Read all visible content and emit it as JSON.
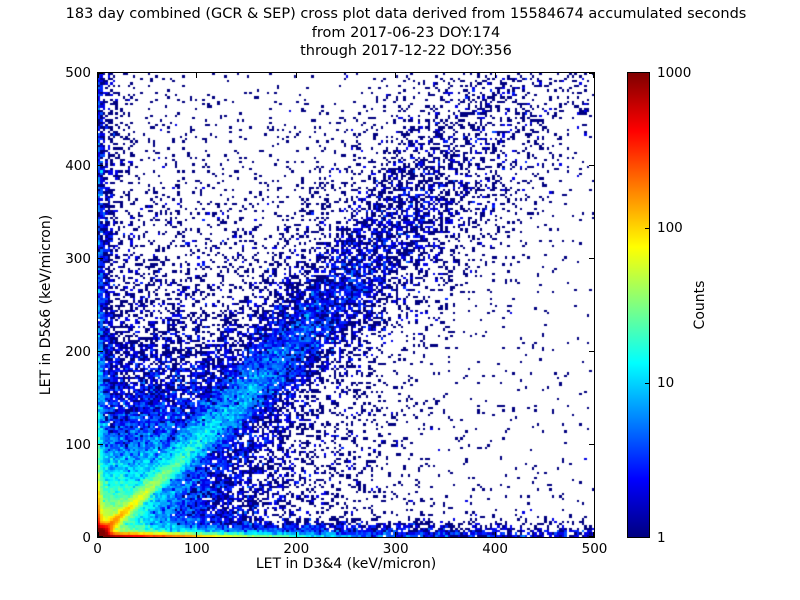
{
  "chart_data": {
    "type": "heatmap",
    "title_lines": [
      "183 day combined (GCR & SEP) cross plot data derived from 15584674 accumulated seconds",
      "from 2017-06-23 DOY:174",
      "through 2017-12-22 DOY:356"
    ],
    "xlabel": "LET in D3&4 (keV/micron)",
    "ylabel": "LET in D5&6 (keV/micron)",
    "xlim": [
      0,
      500
    ],
    "ylim": [
      0,
      500
    ],
    "xticks": [
      0,
      100,
      200,
      300,
      400,
      500
    ],
    "yticks": [
      0,
      100,
      200,
      300,
      400,
      500
    ],
    "grid": false,
    "background_color": "#ffffff",
    "text_color": "#000000",
    "colorbar": {
      "label": "Counts",
      "scale": "log",
      "clim": [
        1,
        1000
      ],
      "ticks": [
        1,
        10,
        100,
        1000
      ],
      "colormap": "jet"
    },
    "bins": [
      200,
      200
    ],
    "seed": 20171222,
    "density_features": [
      {
        "kind": "peak",
        "x": 2,
        "y": 2,
        "sx": 5,
        "sy": 5,
        "amp": 1500
      },
      {
        "kind": "hridge",
        "y": 1.2,
        "sy": 1.4,
        "amp": 900,
        "decay": 45
      },
      {
        "kind": "hridge",
        "y": 2,
        "sy": 4.5,
        "amp": 45,
        "decay": 65
      },
      {
        "kind": "hridge",
        "y": 3,
        "sy": 9,
        "amp": 7,
        "decay": 160
      },
      {
        "kind": "hridge",
        "y": 2,
        "sy": 4.5,
        "amp": 1.3,
        "decay": 100000
      },
      {
        "kind": "vridge",
        "x": 1.2,
        "sx": 1.4,
        "amp": 500,
        "decay": 22
      },
      {
        "kind": "vridge",
        "x": 1.5,
        "sx": 3.5,
        "amp": 25,
        "decay": 90
      },
      {
        "kind": "vridge",
        "x": 2,
        "sx": 10,
        "amp": 3.5,
        "decay": 280
      },
      {
        "kind": "vridge",
        "x": 1.2,
        "sx": 2.2,
        "amp": 1.6,
        "decay": 100000
      },
      {
        "kind": "ray",
        "slope": 1.0,
        "curve": 0,
        "amp": 280,
        "decay": 30,
        "w0": 2.0,
        "wg": 0.02
      },
      {
        "kind": "ray",
        "slope": 0.97,
        "curve": 0.00045,
        "amp": 35,
        "decay": 110,
        "w0": 3,
        "wg": 0.045
      },
      {
        "kind": "ray",
        "slope": 0.97,
        "curve": 0.00045,
        "amp": 4,
        "decay": 220,
        "w0": 8,
        "wg": 0.09
      },
      {
        "kind": "ray",
        "slope": 1.3,
        "curve": 0,
        "amp": 30,
        "decay": 60,
        "w0": 1.8,
        "wg": 0.02
      },
      {
        "kind": "ray",
        "slope": 1.7,
        "curve": 0,
        "amp": 35,
        "decay": 60,
        "w0": 1.8,
        "wg": 0.02
      },
      {
        "kind": "ray",
        "slope": 2.2,
        "curve": 0,
        "amp": 26,
        "decay": 60,
        "w0": 1.8,
        "wg": 0.02
      },
      {
        "kind": "ray",
        "slope": 2.9,
        "curve": 0,
        "amp": 25,
        "decay": 60,
        "w0": 1.8,
        "wg": 0.02
      },
      {
        "kind": "ray",
        "slope": 3.8,
        "curve": 0,
        "amp": 18,
        "decay": 60,
        "w0": 1.8,
        "wg": 0.02
      },
      {
        "kind": "ray",
        "slope": 5.5,
        "curve": 0,
        "amp": 14,
        "decay": 60,
        "w0": 1.8,
        "wg": 0.02
      },
      {
        "kind": "ray",
        "slope": 9,
        "curve": 0,
        "amp": 11,
        "decay": 60,
        "w0": 1.8,
        "wg": 0.02
      },
      {
        "kind": "ray",
        "slope": 0.62,
        "curve": 0,
        "amp": 22,
        "decay": 55,
        "w0": 1.8,
        "wg": 0.02
      },
      {
        "kind": "ray",
        "slope": 0.45,
        "curve": 0,
        "amp": 16,
        "decay": 55,
        "w0": 1.8,
        "wg": 0.02
      },
      {
        "kind": "ray",
        "slope": 0.32,
        "curve": 0,
        "amp": 12,
        "decay": 55,
        "w0": 1.8,
        "wg": 0.02
      },
      {
        "kind": "ray",
        "slope": 0.2,
        "curve": 0,
        "amp": 9,
        "decay": 55,
        "w0": 1.8,
        "wg": 0.02
      },
      {
        "kind": "vline",
        "x": 32,
        "sx": 1.6,
        "amp": 0.35,
        "ydecay": 450
      },
      {
        "kind": "vline",
        "x": 44,
        "sx": 1.4,
        "amp": 0.18,
        "ydecay": 250
      },
      {
        "kind": "vline",
        "x": 57,
        "sx": 1.8,
        "amp": 0.5,
        "ydecay": 300
      },
      {
        "kind": "blob",
        "amp": 6,
        "decay": 38
      },
      {
        "kind": "blob",
        "amp": 1.8,
        "decay": 90
      },
      {
        "kind": "bg",
        "amp": 0.25,
        "xdecay": 170,
        "ydecay": 380,
        "floor": 0.008
      }
    ]
  }
}
